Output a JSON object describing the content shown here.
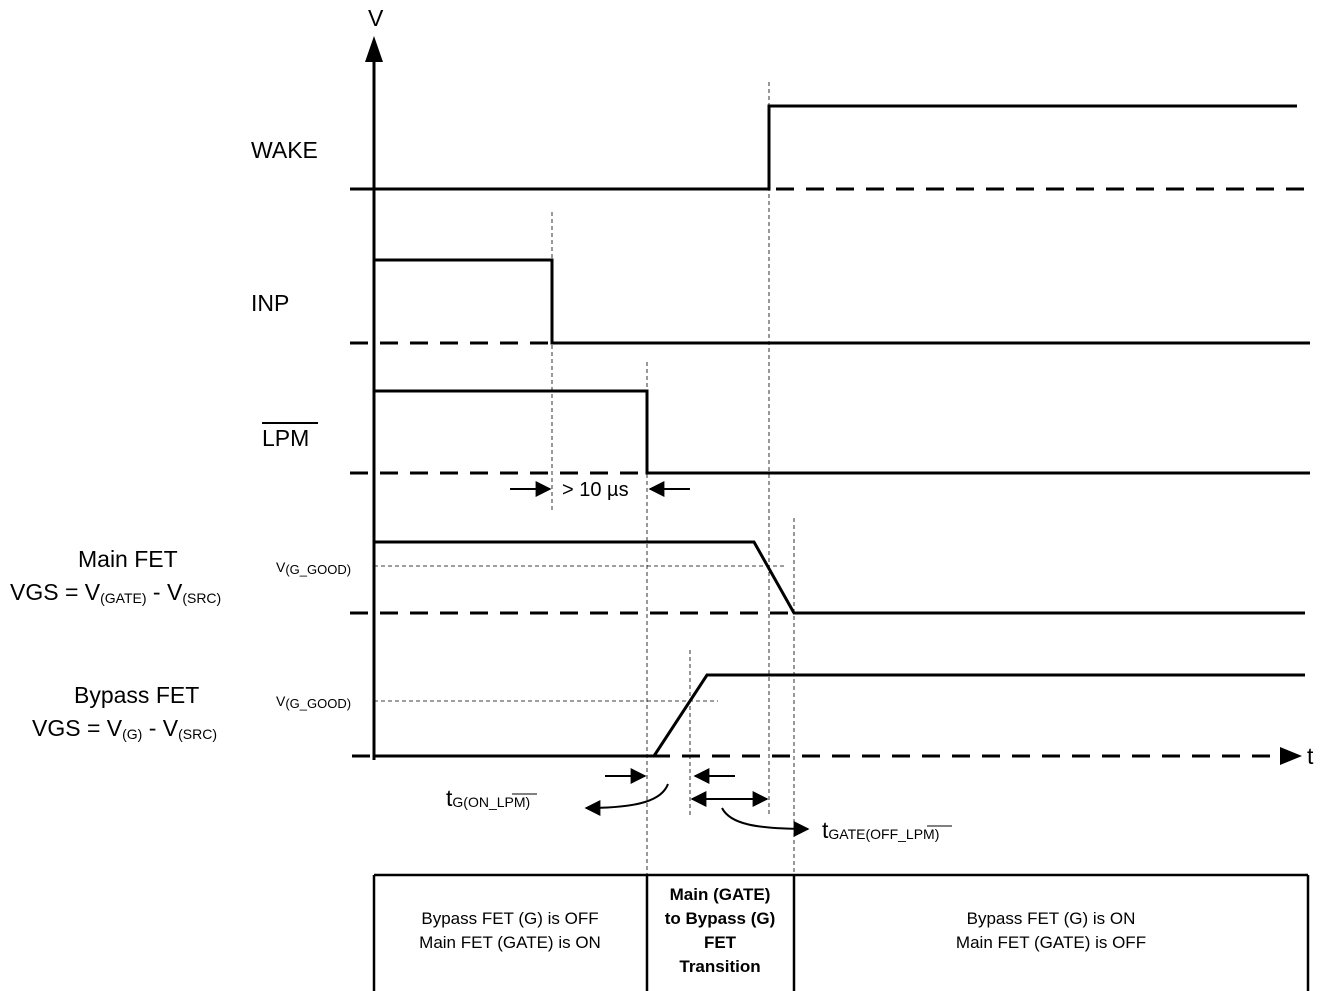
{
  "axes": {
    "y_label": "V",
    "x_label": "t"
  },
  "signals": {
    "wake": "WAKE",
    "inp": "INP",
    "lpm": "LPM",
    "main_fet": {
      "line1": "Main FET",
      "line2_pre": "VGS = V",
      "line2_sub1": "(GATE)",
      "line2_mid": " - V",
      "line2_sub2": "(SRC)"
    },
    "bypass_fet": {
      "line1": "Bypass FET",
      "line2_pre": "VGS = V",
      "line2_sub1": "(G)",
      "line2_mid": " - V",
      "line2_sub2": "(SRC)"
    }
  },
  "thresholds": {
    "main_v": "V",
    "main_sub": "(G_GOOD)",
    "bypass_v": "V",
    "bypass_sub": "(G_GOOD)"
  },
  "annotations": {
    "delay": "> 10 µs",
    "t_g_on_t": "t",
    "t_g_on_sub_a": "G(ON_",
    "t_g_on_sub_lpm": "LPM",
    "t_g_on_sub_b": ")",
    "t_gate_off_t": "t",
    "t_gate_off_sub_a": "GATE(OFF_",
    "t_gate_off_sub_lpm": "LPM",
    "t_gate_off_sub_b": ")"
  },
  "table": {
    "left": {
      "line1": "Bypass FET (G) is OFF",
      "line2": "Main FET (GATE) is ON"
    },
    "middle": {
      "line1": "Main (GATE)",
      "line2": "to Bypass (G)",
      "line3": "FET",
      "line4": "Transition"
    },
    "right": {
      "line1": "Bypass FET (G) is ON",
      "line2": "Main FET (GATE) is OFF"
    }
  }
}
